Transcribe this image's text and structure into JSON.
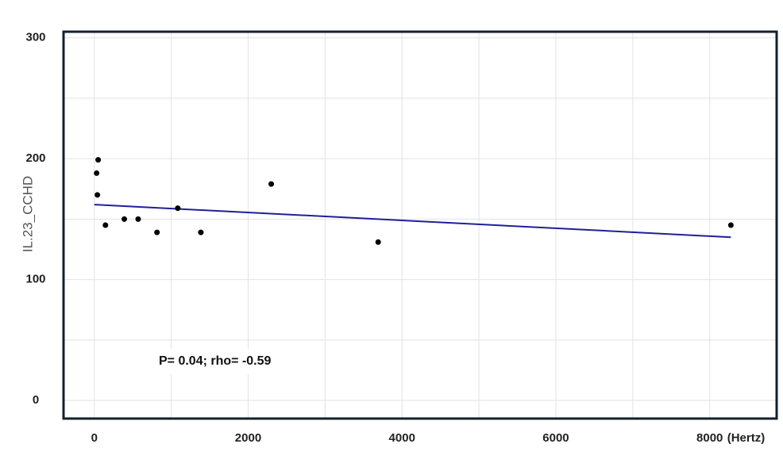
{
  "chart_data": {
    "type": "scatter",
    "ylabel": "IL.23_CCHD",
    "xlabel": "(Hertz)",
    "annotation": "P= 0.04; rho= -0.59",
    "points": {
      "x": [
        30,
        50,
        40,
        145,
        390,
        570,
        815,
        1085,
        1385,
        2300,
        3690,
        8275
      ],
      "y": [
        188,
        199,
        170,
        145,
        150,
        150,
        139,
        159,
        139,
        179,
        131,
        145
      ],
      "color": "#000000"
    },
    "fit": {
      "x": [
        0,
        8275
      ],
      "y": [
        162,
        135
      ],
      "color": "#1f1f99"
    },
    "xlim": [
      -400,
      8870
    ],
    "ylim": [
      -15,
      305
    ],
    "xticks": [
      0,
      2000,
      4000,
      6000,
      8000
    ],
    "yticks": [
      0,
      100,
      200,
      300
    ],
    "xgrid": [
      0,
      1000,
      2000,
      3000,
      4000,
      5000,
      6000,
      7000,
      8000
    ],
    "ygrid": [
      0,
      50,
      100,
      150,
      200,
      250,
      300
    ],
    "grid": true
  }
}
